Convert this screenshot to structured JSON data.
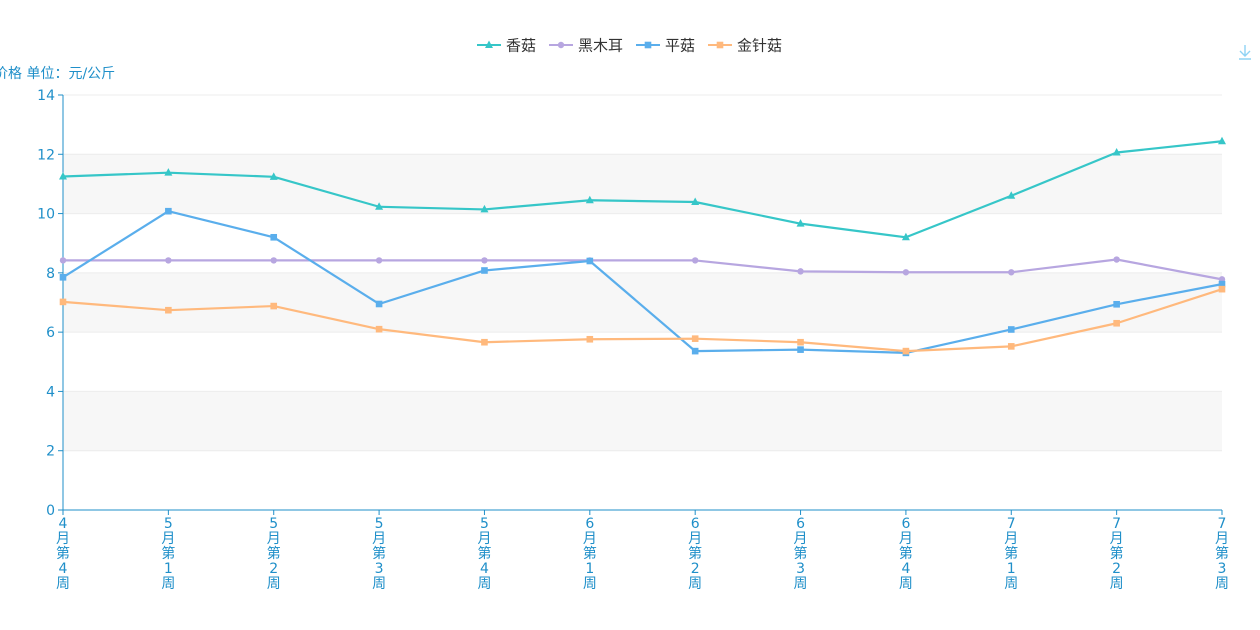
{
  "chart_data": {
    "type": "line",
    "ylabel": "价格 单位：元/公斤",
    "categories": [
      "4月第4周",
      "5月第1周",
      "5月第2周",
      "5月第3周",
      "5月第4周",
      "6月第1周",
      "6月第2周",
      "6月第3周",
      "6月第4周",
      "7月第1周",
      "7月第2周",
      "7月第3周"
    ],
    "ylim": [
      0,
      14
    ],
    "yticks": [
      0,
      2,
      4,
      6,
      8,
      10,
      12,
      14
    ],
    "grid": "horizontal bands",
    "legend": "top-center",
    "series": [
      {
        "name": "香菇",
        "marker": "triangle",
        "color": "#36c6c8",
        "values": [
          11.25,
          11.38,
          11.24,
          10.23,
          10.14,
          10.45,
          10.39,
          9.66,
          9.2,
          10.6,
          12.06,
          12.44
        ]
      },
      {
        "name": "黑木耳",
        "marker": "circle",
        "color": "#b7a6e0",
        "values": [
          8.42,
          8.42,
          8.42,
          8.42,
          8.42,
          8.42,
          8.42,
          8.05,
          8.02,
          8.02,
          8.45,
          7.78
        ]
      },
      {
        "name": "平菇",
        "marker": "square",
        "color": "#5aaeec",
        "values": [
          7.85,
          10.08,
          9.2,
          6.95,
          8.08,
          8.4,
          5.36,
          5.41,
          5.3,
          6.09,
          6.94,
          7.62
        ]
      },
      {
        "name": "金针菇",
        "marker": "square",
        "color": "#ffb97d",
        "values": [
          7.02,
          6.74,
          6.88,
          6.1,
          5.66,
          5.76,
          5.78,
          5.66,
          5.36,
          5.52,
          6.3,
          7.45
        ]
      }
    ]
  },
  "toolbar": {
    "download_icon": "download-icon",
    "icon_color": "#8fd3f4"
  }
}
